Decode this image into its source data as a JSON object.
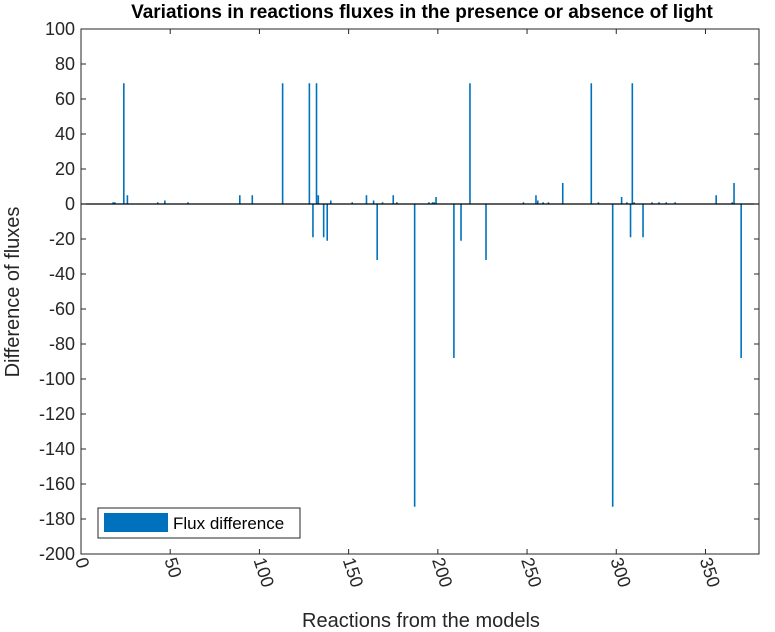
{
  "chart_data": {
    "type": "bar",
    "title": "Variations in reactions fluxes in the presence or absence of light",
    "xlabel": "Reactions from the models",
    "ylabel": "Difference of fluxes",
    "xlim": [
      0,
      380
    ],
    "ylim": [
      -200,
      100
    ],
    "xticks": [
      0,
      50,
      100,
      150,
      200,
      250,
      300,
      350
    ],
    "yticks": [
      100,
      80,
      60,
      40,
      20,
      0,
      -20,
      -40,
      -60,
      -80,
      -100,
      -120,
      -140,
      -160,
      -180,
      -200
    ],
    "grid": false,
    "legend": {
      "entries": [
        "Flux difference"
      ],
      "position": "bottom-left"
    },
    "series": [
      {
        "name": "Flux difference",
        "color": "#0072BD",
        "x": [
          18,
          19,
          24,
          26,
          43,
          47,
          60,
          89,
          96,
          113,
          128,
          130,
          132,
          133,
          136,
          138,
          140,
          152,
          160,
          164,
          166,
          169,
          175,
          177,
          187,
          195,
          197,
          198,
          199,
          209,
          213,
          218,
          227,
          248,
          255,
          256,
          259,
          262,
          270,
          286,
          290,
          298,
          303,
          306,
          308,
          309,
          310,
          315,
          320,
          324,
          328,
          333,
          356,
          365,
          366,
          370
        ],
        "values": [
          1,
          1,
          69,
          5,
          1,
          2,
          1,
          5,
          5,
          69,
          69,
          -19,
          69,
          5,
          -19,
          -21,
          2,
          1,
          5,
          2,
          -32,
          1,
          5,
          1,
          -173,
          1,
          1,
          1,
          4,
          -88,
          -21,
          69,
          -32,
          1,
          5,
          2,
          1,
          1,
          12,
          69,
          1,
          -173,
          4,
          1,
          -19,
          69,
          1,
          -19,
          1,
          1,
          1,
          1,
          5,
          1,
          12,
          -88
        ]
      }
    ]
  }
}
